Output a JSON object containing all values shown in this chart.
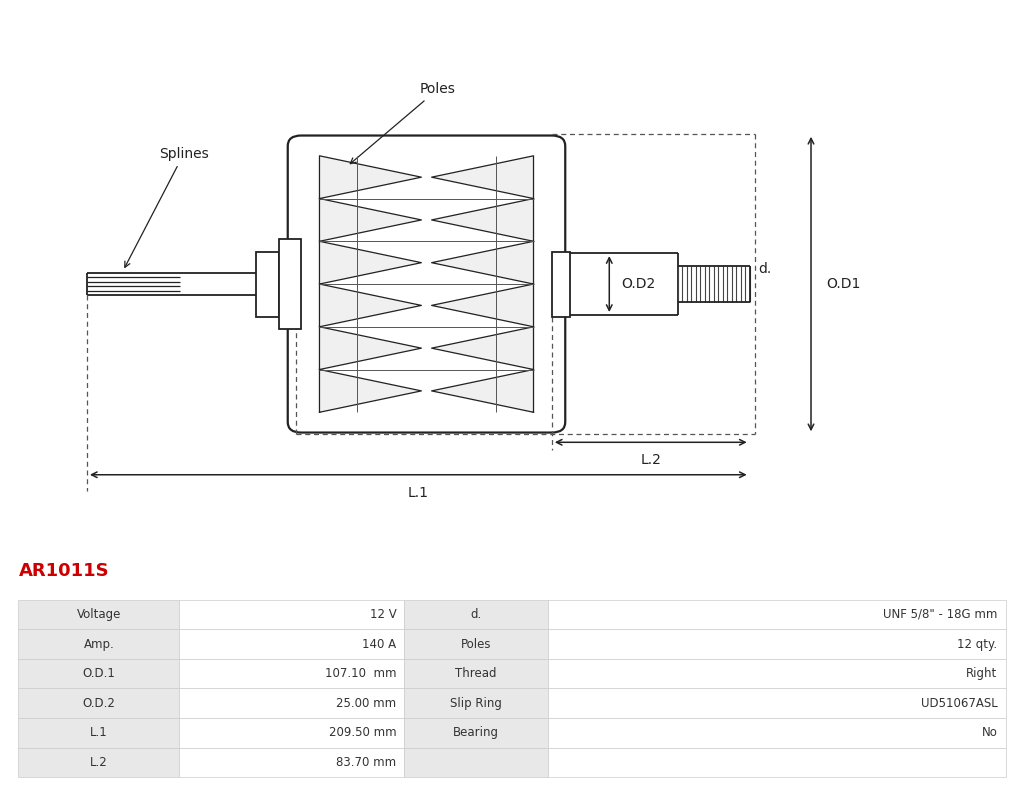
{
  "title": "AR1011S",
  "title_color": "#cc0000",
  "bg_color": "#ffffff",
  "table": {
    "col1_labels": [
      "Voltage",
      "Amp.",
      "O.D.1",
      "O.D.2",
      "L.1",
      "L.2"
    ],
    "col1_values": [
      "12 V",
      "140 A",
      "107.10  mm",
      "25.00 mm",
      "209.50 mm",
      "83.70 mm"
    ],
    "col2_labels": [
      "d.",
      "Poles",
      "Thread",
      "Slip Ring",
      "Bearing",
      ""
    ],
    "col2_values": [
      "UNF 5/8\" - 18G mm",
      "12 qty.",
      "Right",
      "UD51067ASL",
      "No",
      ""
    ],
    "border_color": "#cccccc"
  },
  "diagram": {
    "labels": {
      "splines": "Splines",
      "poles": "Poles",
      "od1": "O.D1",
      "od2": "O.D2",
      "l1": "L.1",
      "l2": "L.2",
      "d": "d."
    }
  }
}
